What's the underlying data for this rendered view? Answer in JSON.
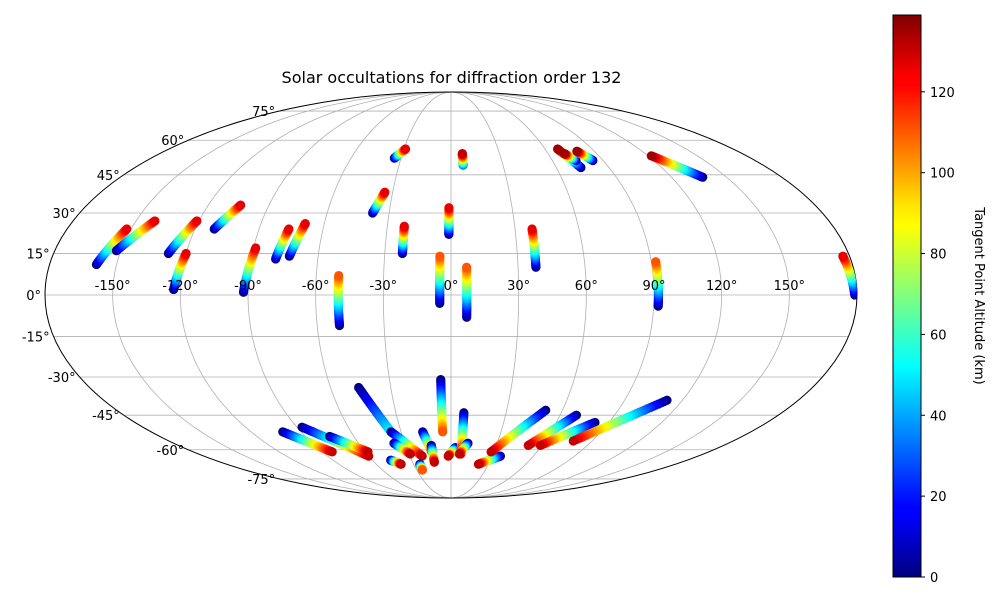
{
  "chart_data": {
    "type": "scatter",
    "projection": "mollweide",
    "title": "Solar occultations for diffraction order 132",
    "longitude_ticks": [
      "-150°",
      "-120°",
      "-90°",
      "-60°",
      "-30°",
      "0°",
      "30°",
      "60°",
      "90°",
      "120°",
      "150°"
    ],
    "latitude_ticks": [
      "75°",
      "60°",
      "45°",
      "30°",
      "15°",
      "0°",
      "-15°",
      "-30°",
      "-45°",
      "-60°",
      "-75°"
    ],
    "grid": true,
    "colorbar": {
      "label": "Tangent Point Altitude (km)",
      "colormap": "jet",
      "range": [
        0,
        139
      ],
      "ticks": [
        0,
        20,
        40,
        60,
        80,
        100,
        120
      ]
    },
    "tracks": [
      {
        "lon_start": -159,
        "lat_start": 11,
        "lon_end": -152,
        "lat_end": 24,
        "alt_start": 0,
        "alt_end": 125
      },
      {
        "lon_start": -152,
        "lat_start": 16,
        "lon_end": -141,
        "lat_end": 27,
        "alt_start": 0,
        "alt_end": 125
      },
      {
        "lon_start": -128,
        "lat_start": 15,
        "lon_end": -121,
        "lat_end": 27,
        "alt_start": 0,
        "alt_end": 125
      },
      {
        "lon_start": -123,
        "lat_start": 2,
        "lon_end": -120,
        "lat_end": 15,
        "alt_start": 0,
        "alt_end": 125
      },
      {
        "lon_start": -111,
        "lat_start": 24,
        "lon_end": -104,
        "lat_end": 33,
        "alt_start": 0,
        "alt_end": 125
      },
      {
        "lon_start": -92,
        "lat_start": 1,
        "lon_end": -89,
        "lat_end": 17,
        "alt_start": 0,
        "alt_end": 125
      },
      {
        "lon_start": -79,
        "lat_start": 13,
        "lon_end": -76,
        "lat_end": 24,
        "alt_start": 0,
        "alt_end": 125
      },
      {
        "lon_start": -73,
        "lat_start": 14,
        "lon_end": -69,
        "lat_end": 26,
        "alt_start": 0,
        "alt_end": 125
      },
      {
        "lon_start": -50,
        "lat_start": -11,
        "lon_end": -50,
        "lat_end": 7,
        "alt_start": 0,
        "alt_end": 110
      },
      {
        "lon_start": -38,
        "lat_start": 30,
        "lon_end": -34,
        "lat_end": 38,
        "alt_start": 0,
        "alt_end": 125
      },
      {
        "lon_start": -34,
        "lat_start": 52,
        "lon_end": -29,
        "lat_end": 56,
        "alt_start": 0,
        "alt_end": 125
      },
      {
        "lon_start": -22,
        "lat_start": 15,
        "lon_end": -22,
        "lat_end": 25,
        "alt_start": 0,
        "alt_end": 125
      },
      {
        "lon_start": -5,
        "lat_start": -3,
        "lon_end": -5,
        "lat_end": 14,
        "alt_start": 0,
        "alt_end": 110
      },
      {
        "lon_start": -1,
        "lat_start": 22,
        "lon_end": -1,
        "lat_end": 32,
        "alt_start": 0,
        "alt_end": 125
      },
      {
        "lon_start": 7,
        "lat_start": -8,
        "lon_end": 7,
        "lat_end": 10,
        "alt_start": 0,
        "alt_end": 110
      },
      {
        "lon_start": 7,
        "lat_start": 49,
        "lon_end": 7,
        "lat_end": 54,
        "alt_start": 30,
        "alt_end": 130
      },
      {
        "lon_start": 38,
        "lat_start": 10,
        "lon_end": 38,
        "lat_end": 24,
        "alt_start": 0,
        "alt_end": 125
      },
      {
        "lon_start": 92,
        "lat_start": -4,
        "lon_end": 92,
        "lat_end": 12,
        "alt_start": 0,
        "alt_end": 110
      },
      {
        "lon_start": 74,
        "lat_start": 48,
        "lon_end": 68,
        "lat_end": 56,
        "alt_start": 0,
        "alt_end": 135
      },
      {
        "lon_start": 74,
        "lat_start": 51,
        "lon_end": 70,
        "lat_end": 54,
        "alt_start": 0,
        "alt_end": 135
      },
      {
        "lon_start": 84,
        "lat_start": 51,
        "lon_end": 79,
        "lat_end": 55,
        "alt_start": 0,
        "alt_end": 135
      },
      {
        "lon_start": 137,
        "lat_start": 44,
        "lon_end": 122,
        "lat_end": 53,
        "alt_start": 0,
        "alt_end": 135
      },
      {
        "lon_start": 179,
        "lat_start": 0,
        "lon_end": 177,
        "lat_end": 14,
        "alt_start": 0,
        "alt_end": 125
      },
      {
        "lon_start": -46,
        "lat_start": -34,
        "lon_end": -36,
        "lat_end": -52,
        "alt_start": 0,
        "alt_end": 50
      },
      {
        "lon_start": -101,
        "lat_start": -52,
        "lon_end": -83,
        "lat_end": -61,
        "alt_start": 0,
        "alt_end": 130
      },
      {
        "lon_start": -87,
        "lat_start": -50,
        "lon_end": -60,
        "lat_end": -63,
        "alt_start": 0,
        "alt_end": 130
      },
      {
        "lon_start": -75,
        "lat_start": -54,
        "lon_end": -58,
        "lat_end": -61,
        "alt_start": 0,
        "alt_end": 130
      },
      {
        "lon_start": -36,
        "lat_start": -52,
        "lon_end": -21,
        "lat_end": -63,
        "alt_start": 0,
        "alt_end": 130
      },
      {
        "lon_start": -37,
        "lat_start": -57,
        "lon_end": -29,
        "lat_end": -62,
        "alt_start": 0,
        "alt_end": 130
      },
      {
        "lon_start": -46,
        "lat_start": -65,
        "lon_end": -40,
        "lat_end": -67,
        "alt_start": 0,
        "alt_end": 130
      },
      {
        "lon_start": -25,
        "lat_start": -67,
        "lon_end": -25,
        "lat_end": -70,
        "alt_start": 0,
        "alt_end": 110
      },
      {
        "lon_start": -17,
        "lat_start": -52,
        "lon_end": -13,
        "lat_end": -62,
        "alt_start": 0,
        "alt_end": 130
      },
      {
        "lon_start": -13,
        "lat_start": -58,
        "lon_end": -13,
        "lat_end": -66,
        "alt_start": 0,
        "alt_end": 130
      },
      {
        "lon_start": -5,
        "lat_start": -31,
        "lon_end": -5,
        "lat_end": -52,
        "alt_start": 0,
        "alt_end": 110
      },
      {
        "lon_start": 3,
        "lat_start": -59,
        "lon_end": -2,
        "lat_end": -63,
        "alt_start": 0,
        "alt_end": 130
      },
      {
        "lon_start": 7,
        "lat_start": -44,
        "lon_end": 7,
        "lat_end": -62,
        "alt_start": 0,
        "alt_end": 130
      },
      {
        "lon_start": 11,
        "lat_start": -57,
        "lon_end": 6,
        "lat_end": -62,
        "alt_start": 0,
        "alt_end": 130
      },
      {
        "lon_start": 36,
        "lat_start": -63,
        "lon_end": 22,
        "lat_end": -67,
        "alt_start": 0,
        "alt_end": 130
      },
      {
        "lon_start": 51,
        "lat_start": -43,
        "lon_end": 28,
        "lat_end": -61,
        "alt_start": 0,
        "alt_end": 130
      },
      {
        "lon_start": 69,
        "lat_start": -45,
        "lon_end": 51,
        "lat_end": -58,
        "alt_start": 0,
        "alt_end": 130
      },
      {
        "lon_start": 82,
        "lat_start": -48,
        "lon_end": 59,
        "lat_end": -58,
        "alt_start": 0,
        "alt_end": 130
      },
      {
        "lon_start": 112,
        "lat_start": -39,
        "lon_end": 78,
        "lat_end": -56,
        "alt_start": 0,
        "alt_end": 130
      }
    ]
  }
}
